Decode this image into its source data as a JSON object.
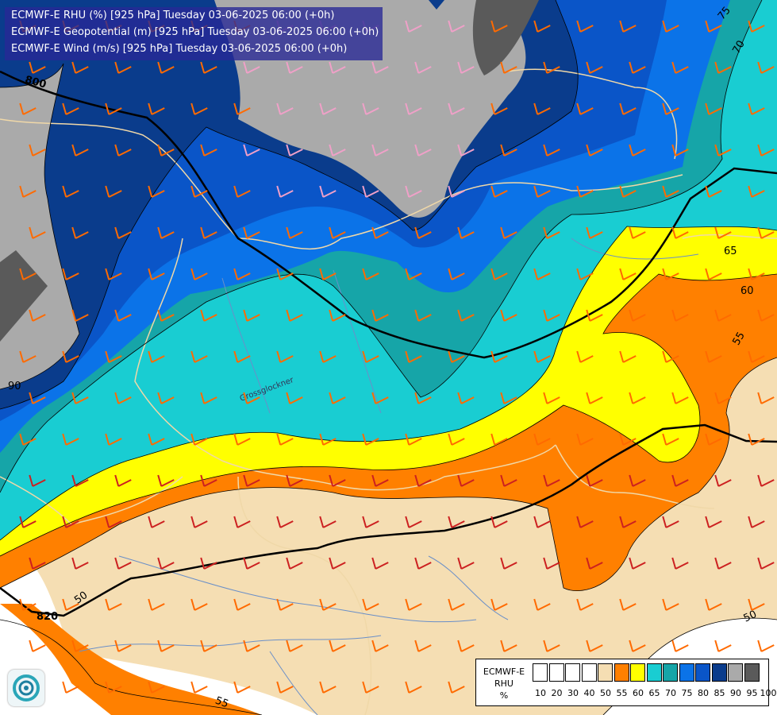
{
  "header": {
    "line1": "ECMWF-E RHU (%) [925 hPa] Tuesday 03-06-2025 06:00 (+0h)",
    "line2": "ECMWF-E Geopotential (m) [925 hPa] Tuesday 03-06-2025 06:00 (+0h)",
    "line3": "ECMWF-E Wind (m/s) [925 hPa] Tuesday 03-06-2025 06:00 (+0h)"
  },
  "legend": {
    "title_line1": "ECMWF-E",
    "title_line2": "RHU",
    "title_line3": "%",
    "colors": [
      "#ffffff",
      "#ffffff",
      "#ffffff",
      "#ffffff",
      "#f5deb3",
      "#ff8000",
      "#ffff00",
      "#19cdd2",
      "#16a5a8",
      "#0b73e8",
      "#0a55c8",
      "#0a3c8c",
      "#aaaaaa",
      "#5a5a5a"
    ],
    "ticks": [
      "10",
      "20",
      "30",
      "40",
      "50",
      "55",
      "60",
      "65",
      "70",
      "75",
      "80",
      "85",
      "90",
      "95",
      "100"
    ]
  },
  "geopotential_labels": [
    "800",
    "820"
  ],
  "rh_contour_labels": [
    "75",
    "70",
    "65",
    "60",
    "55",
    "50",
    "55",
    "90",
    "50"
  ],
  "place_labels": [
    "Grossglockner"
  ],
  "logo_icon": "ecmwf-swirl-logo-icon"
}
